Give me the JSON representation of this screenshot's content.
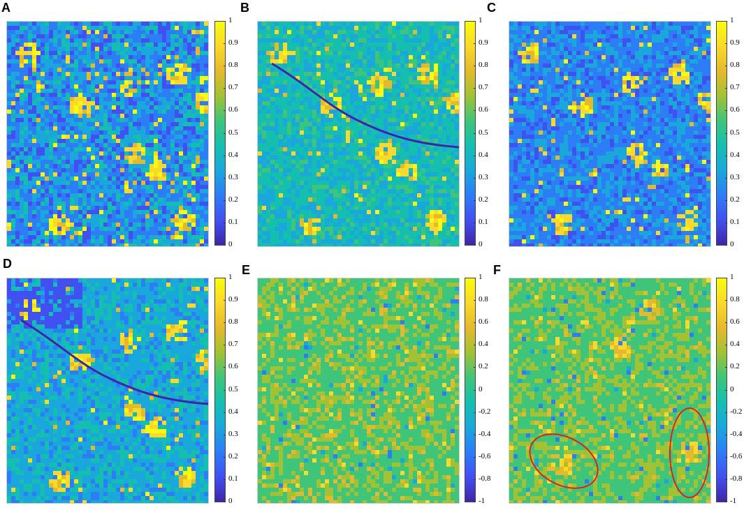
{
  "panels": [
    {
      "letter": "A",
      "scale": "unit"
    },
    {
      "letter": "B",
      "scale": "unit"
    },
    {
      "letter": "C",
      "scale": "unit"
    },
    {
      "letter": "D",
      "scale": "unit"
    },
    {
      "letter": "E",
      "scale": "signed"
    },
    {
      "letter": "F",
      "scale": "signed",
      "annotation": "red ellipses around two highlighted regions"
    }
  ],
  "colorbars": {
    "unit": [
      "1",
      "0.9",
      "0.8",
      "0.7",
      "0.6",
      "0.5",
      "0.4",
      "0.3",
      "0.2",
      "0.1",
      "0"
    ],
    "signed": [
      "1",
      "0.8",
      "0.6",
      "0.4",
      "0.2",
      "0",
      "-0.2",
      "-0.4",
      "-0.6",
      "-0.8",
      "-1"
    ]
  },
  "colormap": [
    "#3e26a8",
    "#4150f0",
    "#2d7df7",
    "#1aa8dc",
    "#15bfb0",
    "#3fc57a",
    "#a2c234",
    "#e5b92d",
    "#fad92a",
    "#f9fb0e"
  ],
  "colors": {
    "annotation_ellipse": "#e0201a"
  }
}
